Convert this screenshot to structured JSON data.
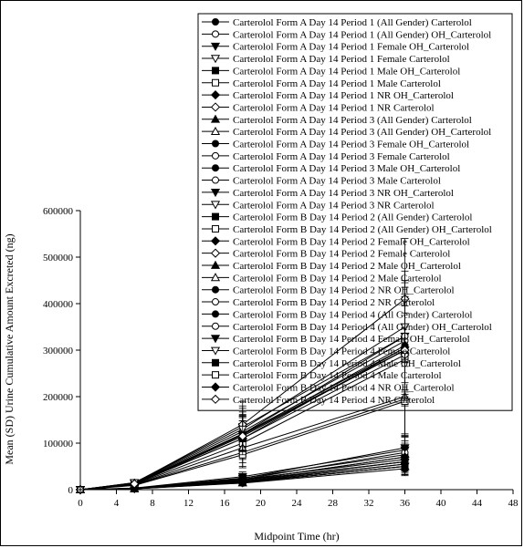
{
  "chart_data": {
    "type": "line",
    "title": "",
    "xlabel": "Midpoint Time (hr)",
    "ylabel": "Mean (SD) Urine Cumulative Amount Excreted (ng)",
    "xlim": [
      0,
      48
    ],
    "ylim": [
      0,
      600000
    ],
    "x_ticks": [
      "0",
      "4",
      "8",
      "12",
      "16",
      "20",
      "24",
      "28",
      "32",
      "36",
      "40",
      "44",
      "48"
    ],
    "y_ticks": [
      "0",
      "100000",
      "200000",
      "300000",
      "400000",
      "500000",
      "600000"
    ],
    "grid": false,
    "legend_position": "top-right",
    "x": [
      0,
      6,
      18,
      36
    ],
    "series": [
      {
        "name": "Carterolol Form A  Day 14  Period 1 (All Gender) Carterolol",
        "marker": "circle-filled",
        "values": [
          0,
          13000,
          120000,
          305000
        ],
        "sd": [
          0,
          4000,
          40000,
          110000
        ]
      },
      {
        "name": "Carterolol Form A  Day 14  Period 1 (All Gender) OH_Carterolol",
        "marker": "circle-open",
        "values": [
          0,
          3000,
          25000,
          75000
        ],
        "sd": [
          0,
          1000,
          9000,
          25000
        ]
      },
      {
        "name": "Carterolol Form A  Day 14  Period 1  Female  OH_Carterolol",
        "marker": "triangle-down-filled",
        "values": [
          0,
          3500,
          28000,
          85000
        ],
        "sd": [
          0,
          1200,
          10000,
          28000
        ]
      },
      {
        "name": "Carterolol Form A  Day 14  Period 1  Female  Carterolol",
        "marker": "triangle-down-open",
        "values": [
          0,
          15000,
          135000,
          330000
        ],
        "sd": [
          0,
          5000,
          45000,
          120000
        ]
      },
      {
        "name": "Carterolol Form A  Day 14  Period 1  Male  OH_Carterolol",
        "marker": "square-filled",
        "values": [
          0,
          2500,
          20000,
          60000
        ],
        "sd": [
          0,
          900,
          8000,
          20000
        ]
      },
      {
        "name": "Carterolol Form A  Day 14  Period 1  Male  Carterolol",
        "marker": "square-open",
        "values": [
          0,
          11000,
          100000,
          280000
        ],
        "sd": [
          0,
          4000,
          35000,
          100000
        ]
      },
      {
        "name": "Carterolol Form A  Day 14  Period 1  NR  OH_Carterolol",
        "marker": "diamond-filled",
        "values": [
          0,
          3000,
          22000,
          65000
        ],
        "sd": [
          0,
          1000,
          8000,
          22000
        ]
      },
      {
        "name": "Carterolol Form A  Day 14  Period 1  NR  Carterolol",
        "marker": "diamond-open",
        "values": [
          0,
          12000,
          110000,
          290000
        ],
        "sd": [
          0,
          4000,
          38000,
          105000
        ]
      },
      {
        "name": "Carterolol Form A  Day 14  Period 3 (All Gender) Carterolol",
        "marker": "triangle-up-filled",
        "values": [
          0,
          12000,
          115000,
          300000
        ],
        "sd": [
          0,
          4000,
          40000,
          110000
        ]
      },
      {
        "name": "Carterolol Form A  Day 14  Period 3 (All Gender) OH_Carterolol",
        "marker": "triangle-up-open",
        "values": [
          0,
          2000,
          15000,
          50000
        ],
        "sd": [
          0,
          800,
          6000,
          18000
        ]
      },
      {
        "name": "Carterolol Form A  Day 14  Period 3  Female  OH_Carterolol",
        "marker": "circle-filled",
        "values": [
          0,
          2200,
          16000,
          55000
        ],
        "sd": [
          0,
          800,
          6000,
          18000
        ]
      },
      {
        "name": "Carterolol Form A  Day 14  Period 3  Female  Carterolol",
        "marker": "circle-open",
        "values": [
          0,
          14000,
          125000,
          320000
        ],
        "sd": [
          0,
          5000,
          42000,
          115000
        ]
      },
      {
        "name": "Carterolol Form A  Day 14  Period 3  Male  OH_Carterolol",
        "marker": "circle-filled",
        "values": [
          0,
          1800,
          14000,
          45000
        ],
        "sd": [
          0,
          700,
          5000,
          15000
        ]
      },
      {
        "name": "Carterolol Form A  Day 14  Period 3  Male  Carterolol",
        "marker": "circle-open",
        "values": [
          0,
          10000,
          80000,
          195000
        ],
        "sd": [
          0,
          3500,
          30000,
          80000
        ]
      },
      {
        "name": "Carterolol Form A  Day 14  Period 3  NR  OH_Carterolol",
        "marker": "triangle-down-filled",
        "values": [
          0,
          2000,
          15000,
          50000
        ],
        "sd": [
          0,
          800,
          6000,
          17000
        ]
      },
      {
        "name": "Carterolol Form A  Day 14  Period 3  NR  Carterolol",
        "marker": "triangle-down-open",
        "values": [
          0,
          13000,
          118000,
          300000
        ],
        "sd": [
          0,
          4000,
          40000,
          110000
        ]
      },
      {
        "name": "Carterolol Form B  Day 14  Period 2 (All Gender) Carterolol",
        "marker": "square-filled",
        "values": [
          0,
          12000,
          110000,
          305000
        ],
        "sd": [
          0,
          4000,
          38000,
          110000
        ]
      },
      {
        "name": "Carterolol Form B  Day 14  Period 2 (All Gender) OH_Carterolol",
        "marker": "square-open",
        "values": [
          0,
          2500,
          18000,
          60000
        ],
        "sd": [
          0,
          900,
          7000,
          20000
        ]
      },
      {
        "name": "Carterolol Form B  Day 14  Period 2  Female  OH_Carterolol",
        "marker": "diamond-filled",
        "values": [
          0,
          2800,
          20000,
          70000
        ],
        "sd": [
          0,
          1000,
          7000,
          22000
        ]
      },
      {
        "name": "Carterolol Form B  Day 14  Period 2  Female  Carterolol",
        "marker": "diamond-open",
        "values": [
          0,
          14000,
          140000,
          410000
        ],
        "sd": [
          0,
          5000,
          50000,
          130000
        ]
      },
      {
        "name": "Carterolol Form B  Day 14  Period 2  Male  OH_Carterolol",
        "marker": "triangle-up-filled",
        "values": [
          0,
          2000,
          15000,
          50000
        ],
        "sd": [
          0,
          800,
          6000,
          17000
        ]
      },
      {
        "name": "Carterolol Form B  Day 14  Period 2  Male  Carterolol",
        "marker": "triangle-up-open",
        "values": [
          0,
          10000,
          90000,
          200000
        ],
        "sd": [
          0,
          3500,
          32000,
          80000
        ]
      },
      {
        "name": "Carterolol Form B  Day 14  Period 2  NR  OH_Carterolol",
        "marker": "circle-filled",
        "values": [
          0,
          2500,
          18000,
          60000
        ],
        "sd": [
          0,
          900,
          6000,
          19000
        ]
      },
      {
        "name": "Carterolol Form B  Day 14  Period 2  NR  Carterolol",
        "marker": "circle-open",
        "values": [
          0,
          13000,
          120000,
          330000
        ],
        "sd": [
          0,
          4500,
          42000,
          115000
        ]
      },
      {
        "name": "Carterolol Form B  Day 14  Period 4 (All Gender) Carterolol",
        "marker": "circle-filled",
        "values": [
          0,
          13000,
          118000,
          310000
        ],
        "sd": [
          0,
          4000,
          40000,
          110000
        ]
      },
      {
        "name": "Carterolol Form B  Day 14  Period 4 (All Gender) OH_Carterolol",
        "marker": "circle-open",
        "values": [
          0,
          2800,
          22000,
          80000
        ],
        "sd": [
          0,
          1000,
          8000,
          25000
        ]
      },
      {
        "name": "Carterolol Form B  Day 14  Period 4  Female  OH_Carterolol",
        "marker": "triangle-down-filled",
        "values": [
          0,
          3000,
          24000,
          90000
        ],
        "sd": [
          0,
          1100,
          9000,
          27000
        ]
      },
      {
        "name": "Carterolol Form B  Day 14  Period 4  Female  Carterolol",
        "marker": "triangle-down-open",
        "values": [
          0,
          15000,
          130000,
          350000
        ],
        "sd": [
          0,
          5000,
          45000,
          120000
        ]
      },
      {
        "name": "Carterolol Form B  Day 14  Period 4  Male  OH_Carterolol",
        "marker": "square-filled",
        "values": [
          0,
          2200,
          17000,
          55000
        ],
        "sd": [
          0,
          800,
          6000,
          18000
        ]
      },
      {
        "name": "Carterolol Form B  Day 14  Period 4  Male  Carterolol",
        "marker": "square-open",
        "values": [
          0,
          9000,
          75000,
          190000
        ],
        "sd": [
          0,
          3000,
          28000,
          75000
        ]
      },
      {
        "name": "Carterolol Form B  Day 14  Period 4  NR  OH_Carterolol",
        "marker": "diamond-filled",
        "values": [
          0,
          2600,
          20000,
          70000
        ],
        "sd": [
          0,
          900,
          7000,
          22000
        ]
      },
      {
        "name": "Carterolol Form B  Day 14  Period 4  NR  Carterolol",
        "marker": "diamond-open",
        "values": [
          0,
          12500,
          115000,
          300000
        ],
        "sd": [
          0,
          4000,
          40000,
          108000
        ]
      }
    ]
  }
}
